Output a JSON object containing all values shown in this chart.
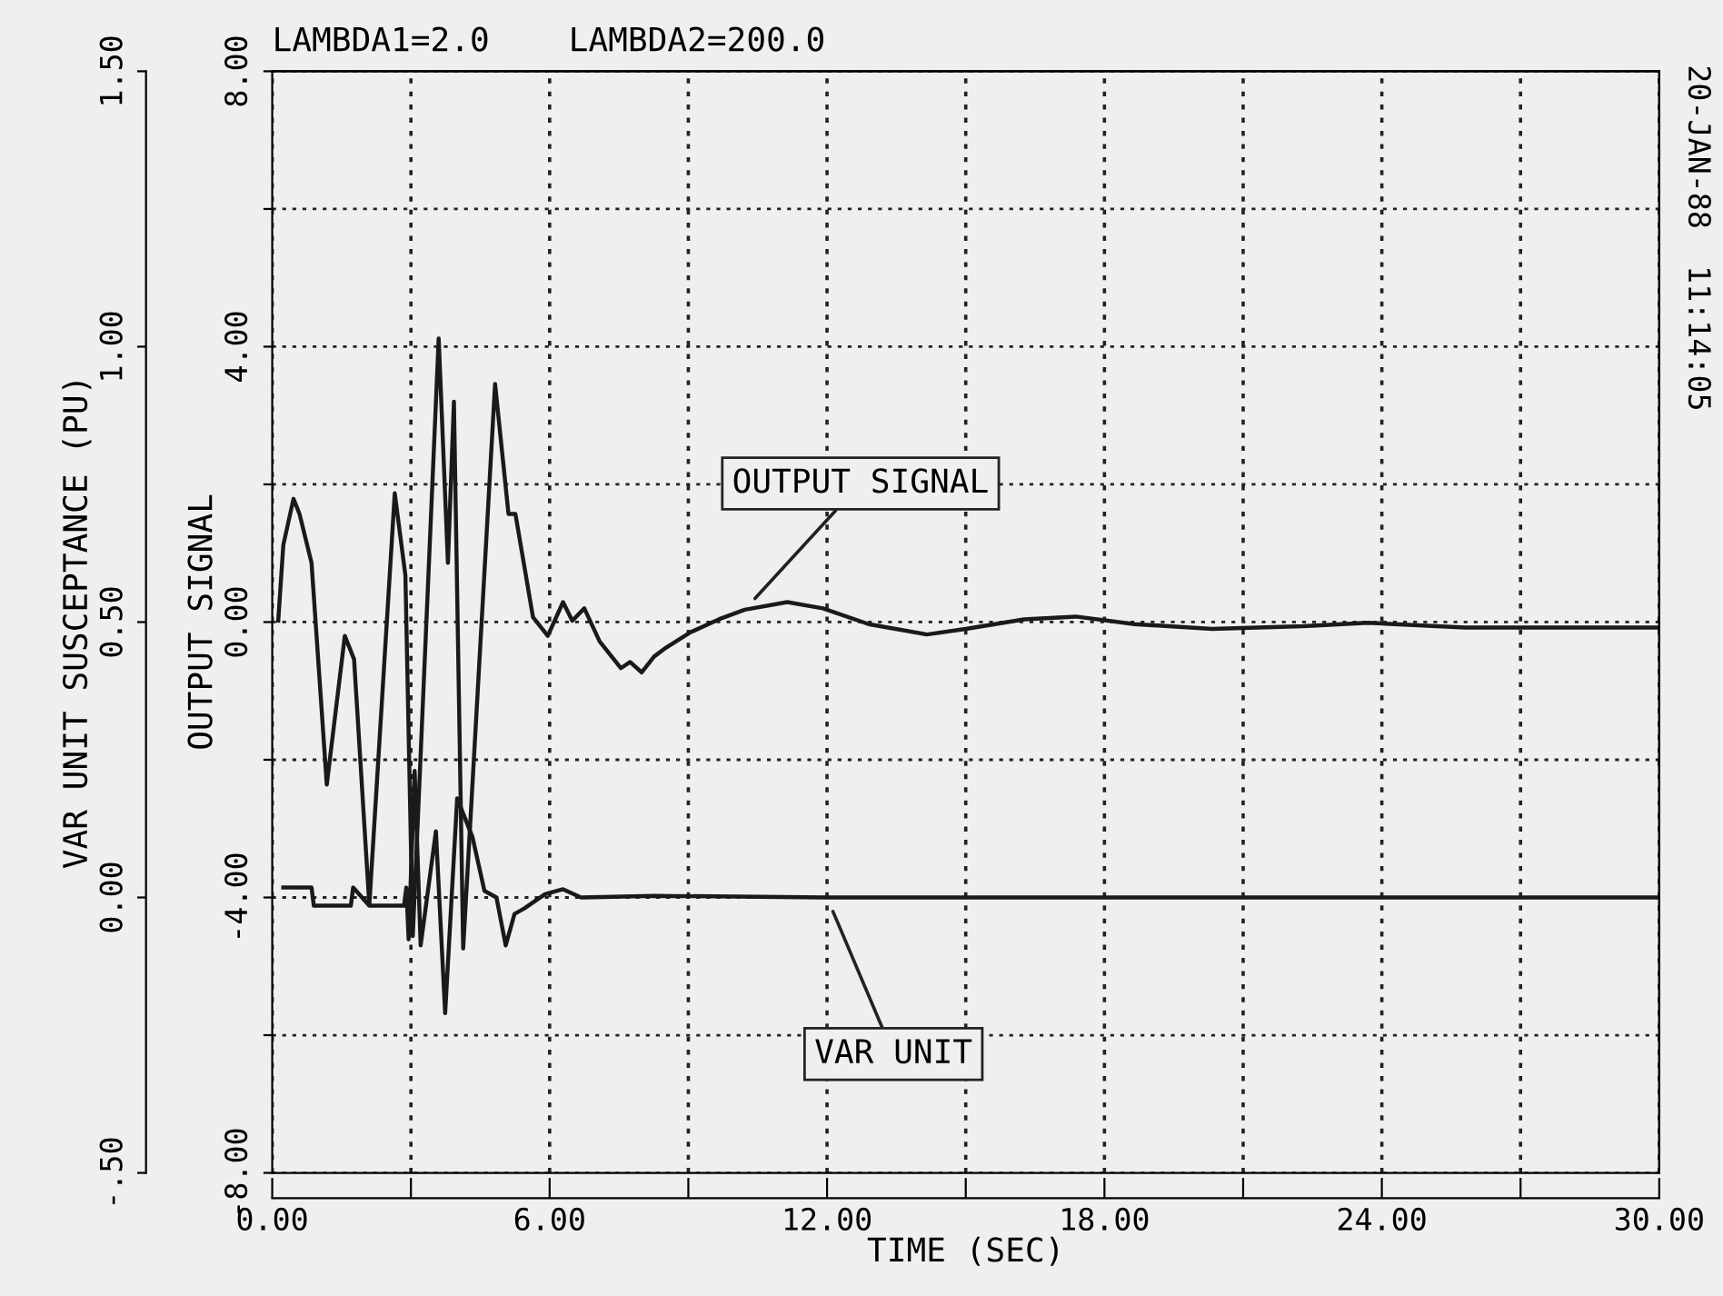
{
  "chart_data": {
    "type": "line",
    "title": "LAMBDA1=2.0    LAMBDA2=200.0",
    "xlabel": "TIME (SEC)",
    "ylabel": "OUTPUT SIGNAL",
    "y2label": "VAR UNIT SUSCEPTANCE (PU)",
    "series": [
      {
        "name": "OUTPUT SIGNAL",
        "color": "#1a1a1a",
        "x": [
          0.13,
          0.24,
          0.46,
          0.59,
          0.85,
          1.18,
          1.57,
          1.77,
          2.1,
          2.65,
          2.88,
          3.04,
          3.6,
          3.8,
          3.93,
          4.13,
          4.82,
          5.11,
          5.26,
          5.64,
          5.96,
          6.29,
          6.49,
          6.75,
          7.08,
          7.54,
          7.74,
          7.99,
          8.26,
          8.52,
          9.04,
          9.66,
          10.22,
          11.14,
          11.91,
          12.9,
          14.16,
          15.0,
          16.26,
          17.38,
          18.65,
          20.33,
          22.3,
          23.7,
          25.8,
          30.0
        ],
        "values": [
          0.02,
          1.12,
          1.79,
          1.57,
          0.86,
          -2.36,
          -0.2,
          -0.54,
          -4.11,
          1.87,
          0.68,
          -4.56,
          4.12,
          0.86,
          3.2,
          -4.74,
          3.46,
          1.57,
          1.57,
          0.07,
          -0.2,
          0.29,
          0.02,
          0.2,
          -0.28,
          -0.67,
          -0.58,
          -0.73,
          -0.5,
          -0.37,
          -0.15,
          0.04,
          0.18,
          0.29,
          0.2,
          -0.03,
          -0.18,
          -0.1,
          0.04,
          0.08,
          -0.03,
          -0.1,
          -0.06,
          -0.01,
          -0.08,
          -0.08
        ]
      },
      {
        "name": "VAR UNIT",
        "color": "#1a1a1a",
        "axis": "y2",
        "x": [
          0.24,
          0.85,
          0.9,
          1.7,
          1.75,
          2.1,
          2.85,
          2.9,
          2.95,
          3.08,
          3.21,
          3.54,
          3.74,
          4.0,
          4.33,
          4.59,
          4.85,
          5.05,
          5.24,
          5.45,
          5.9,
          6.29,
          6.68,
          8.26,
          12.0,
          30.0
        ],
        "values": [
          0.018,
          0.018,
          -0.015,
          -0.015,
          0.018,
          -0.015,
          -0.015,
          0.018,
          -0.076,
          0.23,
          -0.087,
          0.12,
          -0.21,
          0.18,
          0.11,
          0.012,
          0.0,
          -0.087,
          -0.03,
          -0.02,
          0.006,
          0.015,
          0.0,
          0.003,
          0.0,
          0.0
        ]
      }
    ],
    "xlim": [
      0,
      30
    ],
    "xticks": [
      {
        "value": 0,
        "label": "0.00"
      },
      {
        "value": 3,
        "label": null
      },
      {
        "value": 6,
        "label": "6.00"
      },
      {
        "value": 9,
        "label": null
      },
      {
        "value": 12,
        "label": "12.00"
      },
      {
        "value": 15,
        "label": null
      },
      {
        "value": 18,
        "label": "18.00"
      },
      {
        "value": 21,
        "label": null
      },
      {
        "value": 24,
        "label": "24.00"
      },
      {
        "value": 27,
        "label": null
      },
      {
        "value": 30,
        "label": "30.00"
      }
    ],
    "ylim": [
      -8,
      8
    ],
    "yticks": [
      {
        "value": -8,
        "label": "-8.00"
      },
      {
        "value": -6,
        "label": null
      },
      {
        "value": -4,
        "label": "-4.00"
      },
      {
        "value": -2,
        "label": null
      },
      {
        "value": 0,
        "label": "0.00"
      },
      {
        "value": 2,
        "label": null
      },
      {
        "value": 4,
        "label": "4.00"
      },
      {
        "value": 6,
        "label": null
      },
      {
        "value": 8,
        "label": "8.00"
      }
    ],
    "y2lim": [
      -0.5,
      1.5
    ],
    "y2ticks": [
      {
        "value": -0.5,
        "label": "-.50"
      },
      {
        "value": 0,
        "label": "0.00"
      },
      {
        "value": 0.5,
        "label": "0.50"
      },
      {
        "value": 1,
        "label": "1.00"
      },
      {
        "value": 1.5,
        "label": "1.50"
      }
    ],
    "grid": true,
    "legend": false,
    "line_style": "solid",
    "marker": "none",
    "annotations": [
      "20-JAN-88  11:14:05"
    ]
  }
}
